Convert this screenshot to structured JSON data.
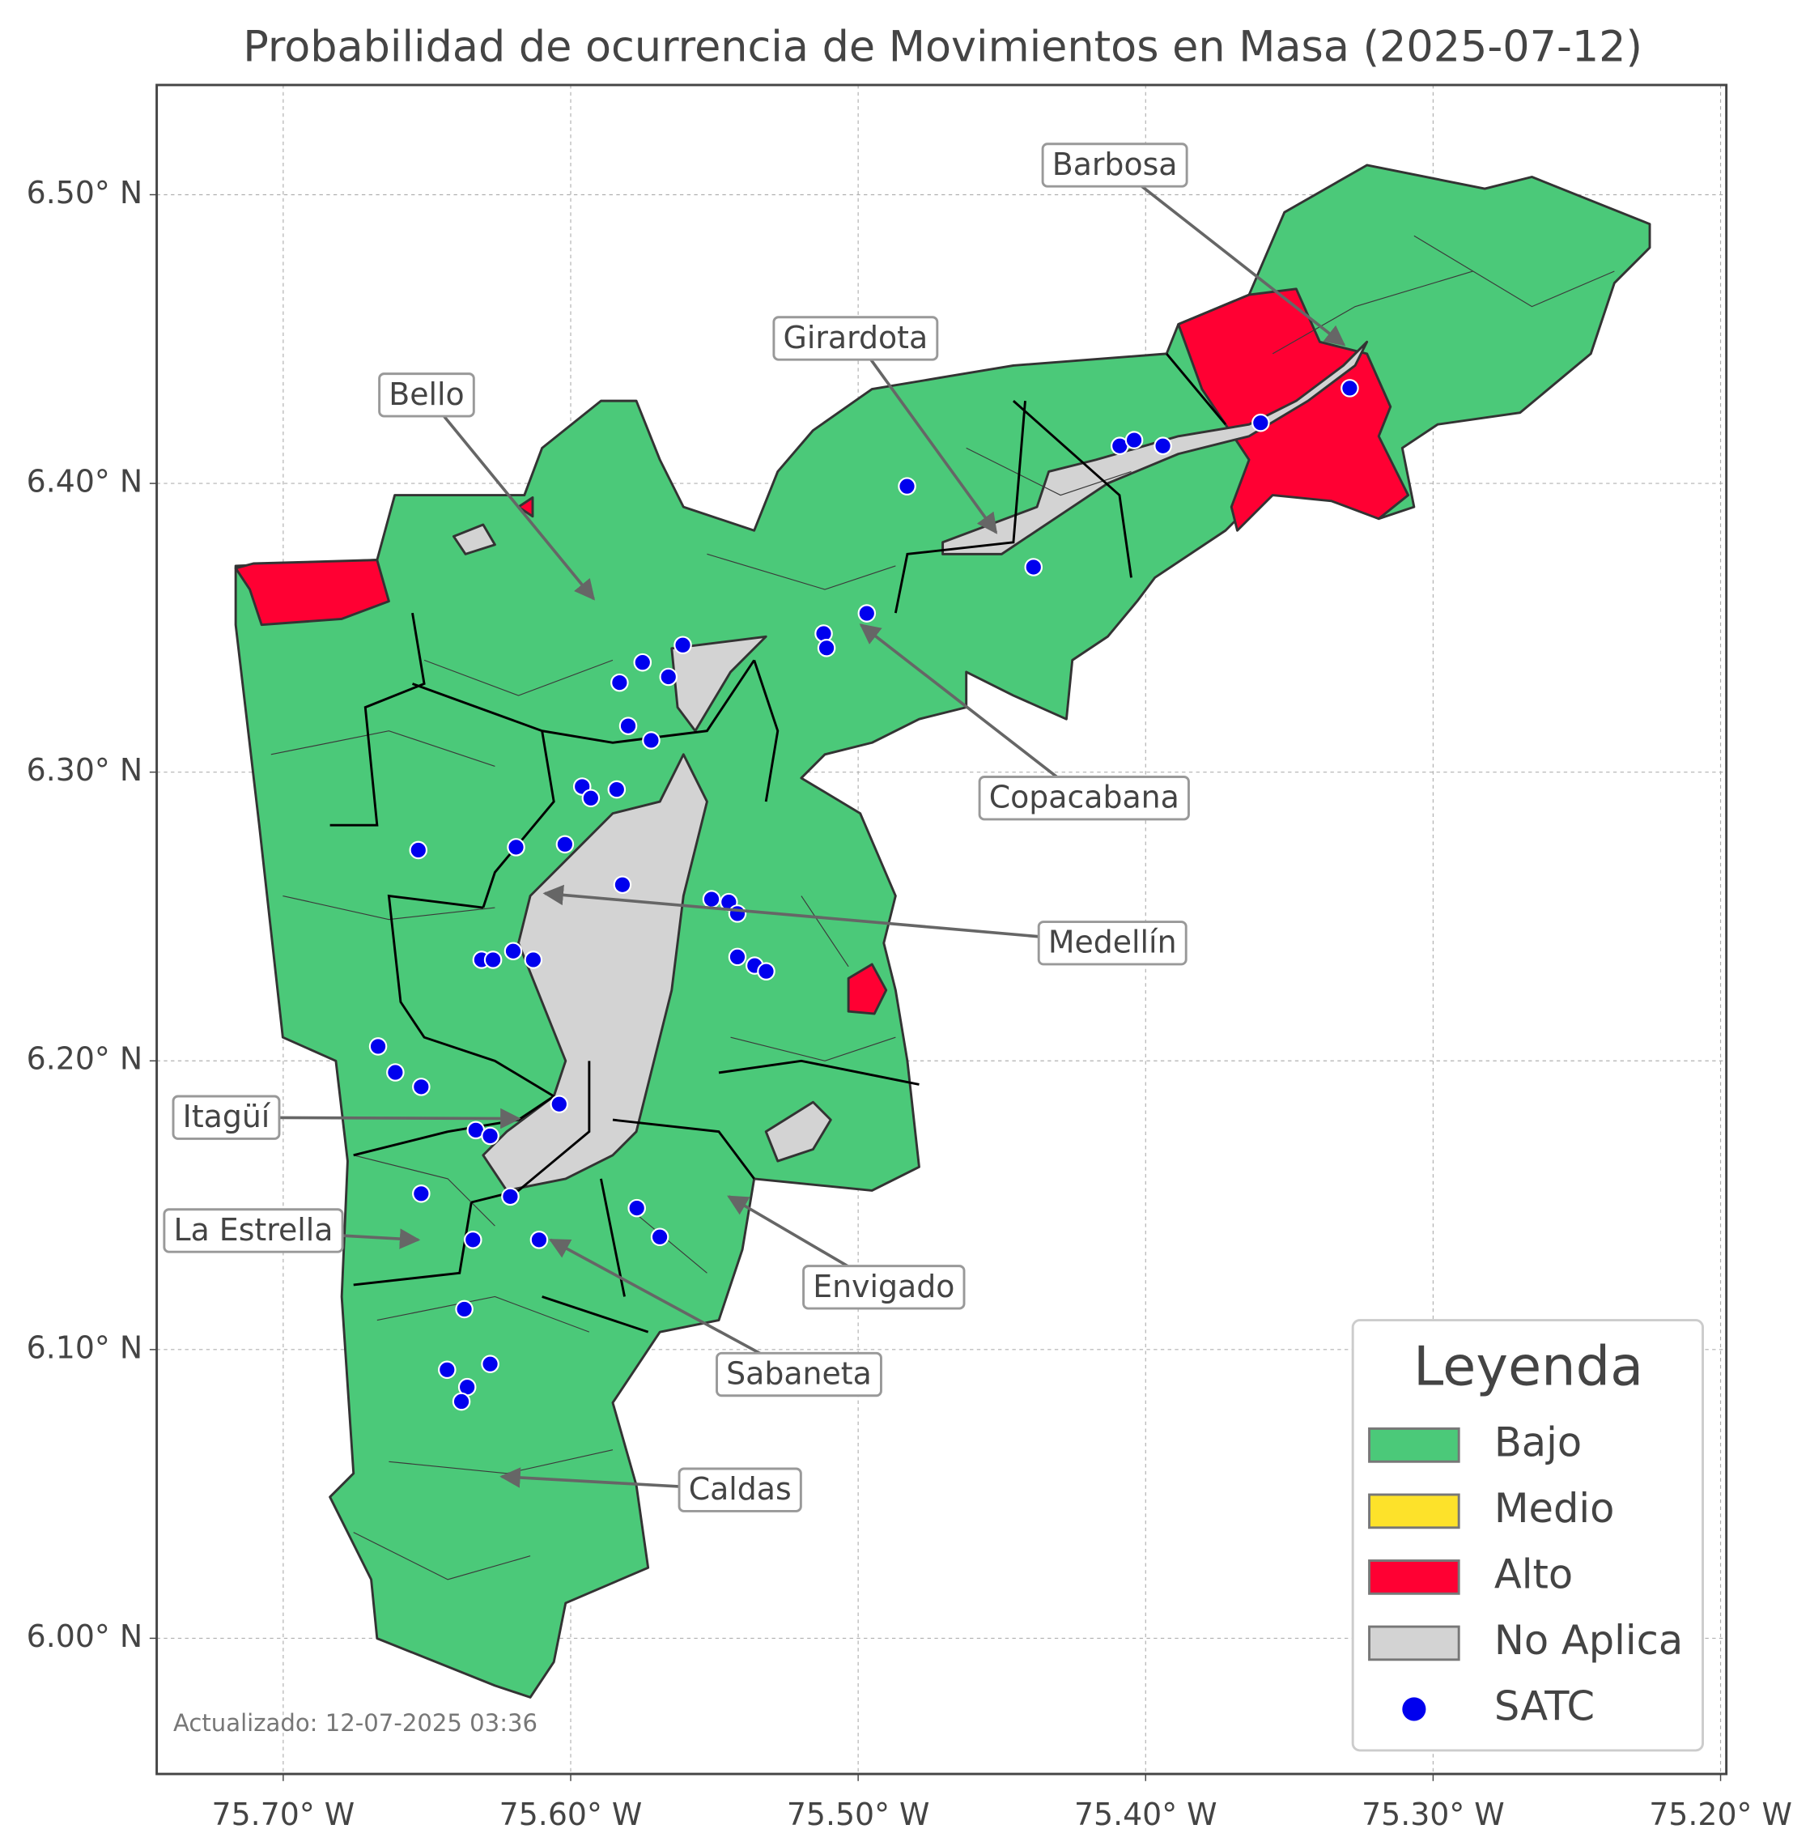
{
  "map": {
    "title": "Probabilidad de ocurrencia de Movimientos en Masa (2025-07-12)",
    "xlim": [
      -75.744,
      -75.198
    ],
    "ylim": [
      5.953,
      6.538
    ],
    "xticks": [
      {
        "value": -75.7,
        "label": "75.70° W"
      },
      {
        "value": -75.6,
        "label": "75.60° W"
      },
      {
        "value": -75.5,
        "label": "75.50° W"
      },
      {
        "value": -75.4,
        "label": "75.40° W"
      },
      {
        "value": -75.3,
        "label": "75.30° W"
      },
      {
        "value": -75.2,
        "label": "75.20° W"
      }
    ],
    "yticks": [
      {
        "value": 6.0,
        "label": "6.00° N"
      },
      {
        "value": 6.1,
        "label": "6.10° N"
      },
      {
        "value": 6.2,
        "label": "6.20° N"
      },
      {
        "value": 6.3,
        "label": "6.30° N"
      },
      {
        "value": 6.4,
        "label": "6.40° N"
      },
      {
        "value": 6.5,
        "label": "6.50° N"
      }
    ],
    "grid": true,
    "annotations": [
      {
        "label": "Barbosa",
        "lon": -75.331,
        "lat": 6.448
      },
      {
        "label": "Girardota",
        "lon": -75.452,
        "lat": 6.383
      },
      {
        "label": "Bello",
        "lon": -75.592,
        "lat": 6.36
      },
      {
        "label": "Copacabana",
        "lon": -75.499,
        "lat": 6.351
      },
      {
        "label": "Medellín",
        "lon": -75.609,
        "lat": 6.258
      },
      {
        "label": "Itagüí",
        "lon": -75.618,
        "lat": 6.18
      },
      {
        "label": "La Estrella",
        "lon": -75.653,
        "lat": 6.138
      },
      {
        "label": "Envigado",
        "lon": -75.545,
        "lat": 6.153
      },
      {
        "label": "Sabaneta",
        "lon": -75.607,
        "lat": 6.138
      },
      {
        "label": "Caldas",
        "lon": -75.624,
        "lat": 6.056
      }
    ],
    "legend": {
      "title": "Leyenda",
      "items": [
        {
          "label": "Bajo",
          "color": "#4bc979"
        },
        {
          "label": "Medio",
          "color": "#fde22a"
        },
        {
          "label": "Alto",
          "color": "#ff0033"
        },
        {
          "label": "No Aplica",
          "color": "#d3d3d3"
        },
        {
          "label": "SATC",
          "color": "#0000ee"
        }
      ]
    },
    "satc": {
      "lon": [
        -75.329,
        -75.36,
        -75.409,
        -75.404,
        -75.394,
        -75.483,
        -75.439,
        -75.497,
        -75.512,
        -75.511,
        -75.561,
        -75.575,
        -75.583,
        -75.566,
        -75.58,
        -75.572,
        -75.596,
        -75.593,
        -75.584,
        -75.653,
        -75.619,
        -75.602,
        -75.582,
        -75.551,
        -75.545,
        -75.542,
        -75.542,
        -75.536,
        -75.532,
        -75.631,
        -75.627,
        -75.62,
        -75.613,
        -75.667,
        -75.661,
        -75.652,
        -75.604,
        -75.633,
        -75.628,
        -75.652,
        -75.621,
        -75.577,
        -75.569,
        -75.634,
        -75.611,
        -75.637,
        -75.643,
        -75.628,
        -75.636,
        -75.638
      ],
      "lat": [
        6.433,
        6.421,
        6.413,
        6.415,
        6.413,
        6.399,
        6.371,
        6.355,
        6.348,
        6.343,
        6.344,
        6.338,
        6.331,
        6.333,
        6.316,
        6.311,
        6.295,
        6.291,
        6.294,
        6.273,
        6.274,
        6.275,
        6.261,
        6.256,
        6.255,
        6.251,
        6.236,
        6.233,
        6.231,
        6.235,
        6.235,
        6.238,
        6.235,
        6.205,
        6.196,
        6.191,
        6.185,
        6.176,
        6.174,
        6.154,
        6.153,
        6.149,
        6.139,
        6.138,
        6.138,
        6.114,
        6.093,
        6.095,
        6.087,
        6.082
      ]
    },
    "footnote": "Actualizado: 12-07-2025 03:36"
  }
}
